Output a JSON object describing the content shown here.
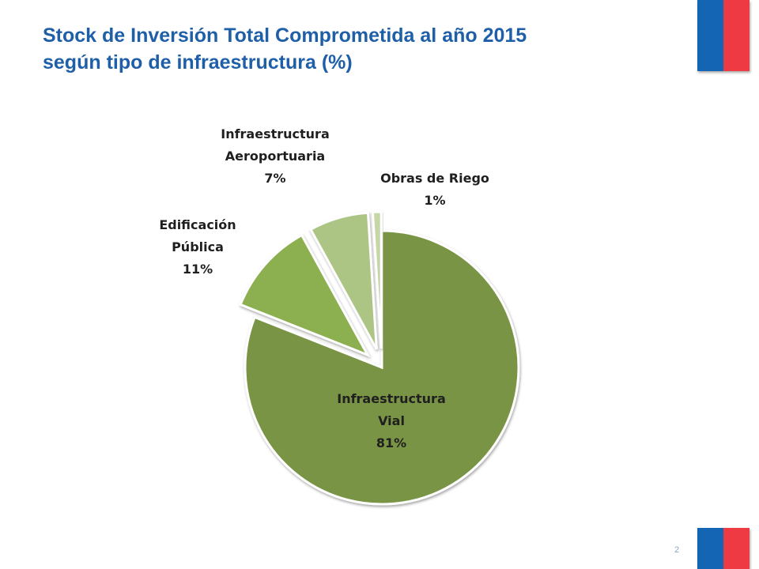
{
  "title": {
    "line1": "Stock de Inversión Total Comprometida al año 2015",
    "line2": "según tipo de infraestructura (%)"
  },
  "page_number": "2",
  "colors": {
    "title": "#1f5fa8",
    "flag_blue": "#1565b5",
    "flag_red": "#ee3a43"
  },
  "chart_data": {
    "type": "pie",
    "title": "Stock de Inversión Total Comprometida al año 2015 según tipo de infraestructura (%)",
    "slices": [
      {
        "name": "Infraestructura Vial",
        "label_lines": [
          "Infraestructura",
          "Vial",
          "81%"
        ],
        "value": 81,
        "color": "#7a9445",
        "exploded": false
      },
      {
        "name": "Edificación Pública",
        "label_lines": [
          "Edificación",
          "Pública",
          "11%"
        ],
        "value": 11,
        "color": "#8cb04f",
        "exploded": true
      },
      {
        "name": "Infraestructura Aeroportuaria",
        "label_lines": [
          "Infraestructura",
          "Aeroportuaria",
          "7%"
        ],
        "value": 7,
        "color": "#adc584",
        "exploded": true
      },
      {
        "name": "Obras de Riego",
        "label_lines": [
          "Obras de Riego",
          "1%"
        ],
        "value": 1,
        "color": "#c6d7a6",
        "exploded": true
      }
    ],
    "legend": "none",
    "labels": "outside with percentages"
  }
}
